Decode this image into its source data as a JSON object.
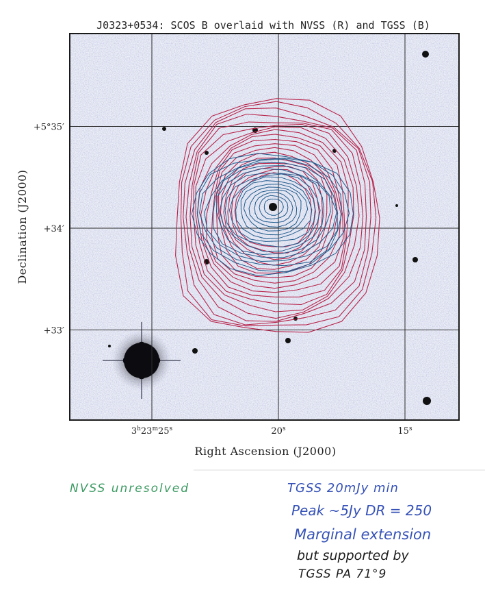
{
  "figure": {
    "title": "J0323+0534: SCOS B overlaid with NVSS (R) and TGSS (B)",
    "xlabel": "Right Ascension (J2000)",
    "ylabel": "Declination (J2000)",
    "ra_ticks": [
      {
        "label": "3h23m25s",
        "parts": [
          "3",
          "h",
          "23",
          "m",
          "25",
          "s"
        ],
        "ra_sec": 25
      },
      {
        "label": "20s",
        "parts": [
          "20",
          "s"
        ],
        "ra_sec": 20
      },
      {
        "label": "15s",
        "parts": [
          "15",
          "s"
        ],
        "ra_sec": 15
      }
    ],
    "dec_ticks": [
      {
        "label": "+5°35′",
        "dec_arcmin": 35
      },
      {
        "label": "+34′",
        "dec_arcmin": 34
      },
      {
        "label": "+33′",
        "dec_arcmin": 33
      }
    ],
    "colors": {
      "nvss_contours": "#b8234a",
      "tgss_contours": "#1e5a8c",
      "background_image": "#e7e9f4",
      "stars": "#111111"
    }
  },
  "annotations": {
    "nvss_note": "NVSS unresolved",
    "tgss_line1": "TGSS 20mJy min",
    "tgss_line2": "Peak ~5Jy DR = 250",
    "tgss_line3": "Marginal extension",
    "tgss_line4": "but supported by",
    "tgss_line5": "TGSS PA 71°9"
  }
}
